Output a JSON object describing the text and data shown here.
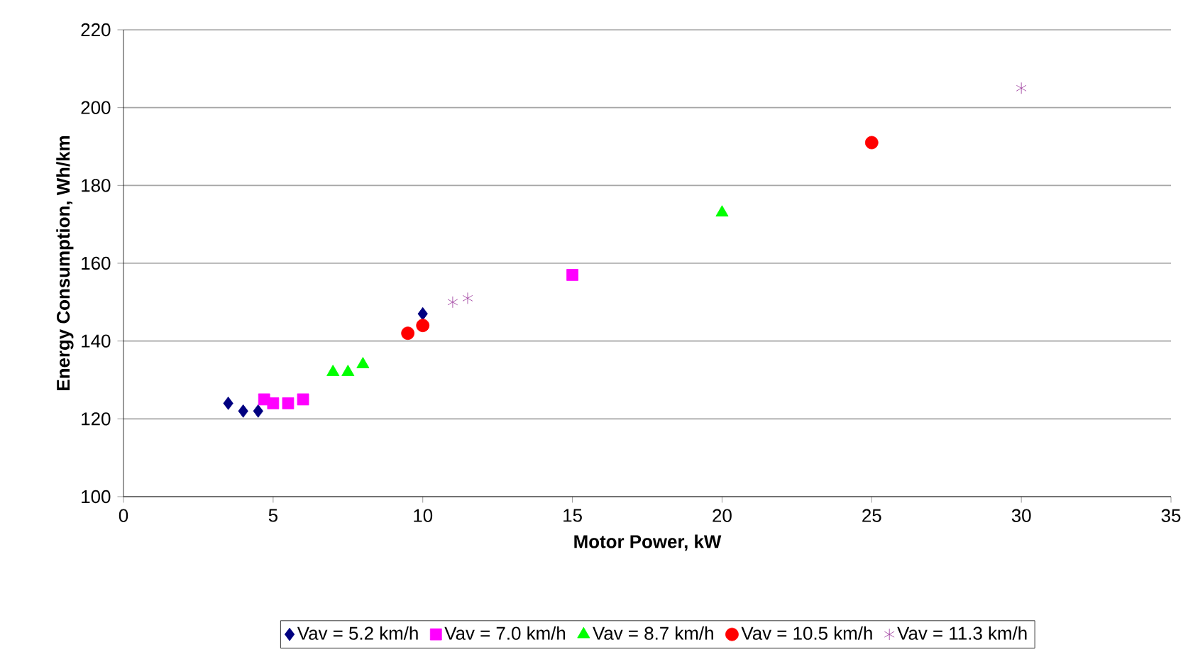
{
  "chart_data": {
    "type": "scatter",
    "xlabel": "Motor Power, kW",
    "ylabel": "Energy Consumption, Wh/km",
    "xlim": [
      0,
      35
    ],
    "xticks": [
      0,
      5,
      10,
      15,
      20,
      25,
      30,
      35
    ],
    "ylim": [
      100,
      220
    ],
    "yticks": [
      100,
      120,
      140,
      160,
      180,
      200,
      220
    ],
    "grid": "y",
    "legend": "bottom",
    "series": [
      {
        "name": "Vav = 5.2 km/h",
        "color": "#000080",
        "marker": "diamond",
        "x": [
          3.5,
          4,
          4.5,
          10
        ],
        "values": [
          124,
          122,
          122,
          147
        ]
      },
      {
        "name": "Vav = 7.0 km/h",
        "color": "#ff00ff",
        "marker": "square",
        "x": [
          4.7,
          5,
          5.5,
          6,
          15
        ],
        "values": [
          125,
          124,
          124,
          125,
          157
        ]
      },
      {
        "name": "Vav = 8.7 km/h",
        "color": "#00ff00",
        "marker": "triangle",
        "x": [
          7,
          7.5,
          8,
          20
        ],
        "values": [
          132,
          132,
          134,
          173
        ]
      },
      {
        "name": "Vav = 10.5 km/h",
        "color": "#ff0000",
        "marker": "circle",
        "x": [
          9.5,
          10,
          25
        ],
        "values": [
          142,
          144,
          191
        ]
      },
      {
        "name": "Vav = 11.3 km/h",
        "color": "#993399",
        "marker": "cross",
        "x": [
          11,
          11.5,
          30
        ],
        "values": [
          150,
          151,
          205
        ]
      }
    ]
  }
}
